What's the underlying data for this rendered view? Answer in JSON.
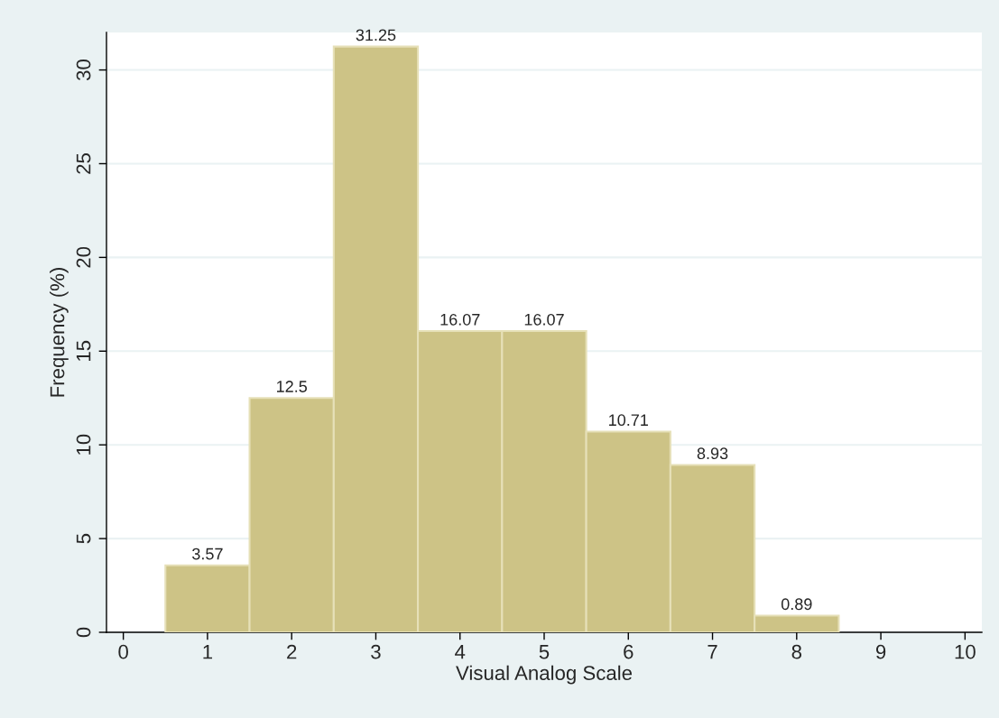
{
  "chart_data": {
    "type": "histogram",
    "xlabel": "Visual Analog Scale",
    "ylabel": "Frequency (%)",
    "bins": [
      0.5,
      1.5,
      2.5,
      3.5,
      4.5,
      5.5,
      6.5,
      7.5,
      8.5
    ],
    "values": [
      3.57,
      12.5,
      31.25,
      16.07,
      16.07,
      10.71,
      8.93,
      0.89
    ],
    "color": "#cdc386",
    "data_labels": true,
    "xlim": [
      -0.2,
      10.2
    ],
    "xticks": [
      0,
      1,
      2,
      3,
      4,
      5,
      6,
      7,
      8,
      9,
      10
    ],
    "ylim": [
      0,
      32
    ],
    "yticks": [
      0,
      5,
      10,
      15,
      20,
      25,
      30
    ],
    "grid": "y"
  }
}
